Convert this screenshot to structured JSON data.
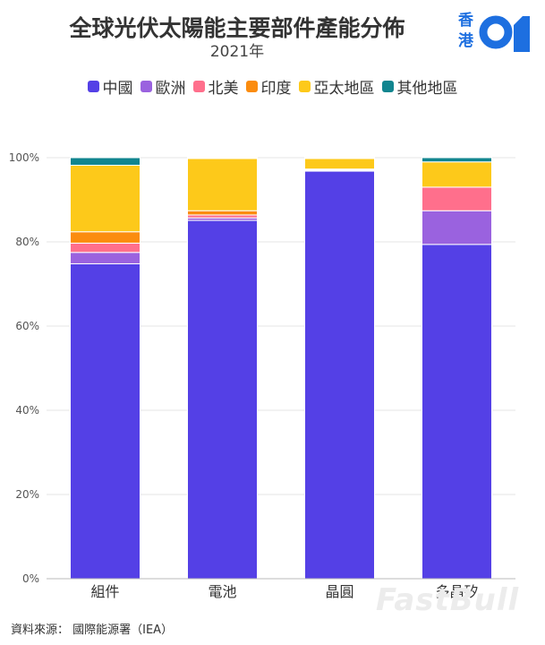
{
  "header": {
    "title": "全球光伏太陽能主要部件產能分佈",
    "subtitle": "2021年"
  },
  "logo": {
    "line1": "香",
    "line2": "港",
    "mark": "01"
  },
  "watermark": "FastBull",
  "source": "資料來源： 國際能源署（IEA）",
  "chart_data": {
    "type": "bar",
    "stacked": true,
    "categories": [
      "組件",
      "電池",
      "晶圓",
      "多晶矽"
    ],
    "series": [
      {
        "name": "中國",
        "color": "#5440e6",
        "values": [
          74.8,
          85.1,
          96.8,
          79.4
        ]
      },
      {
        "name": "歐洲",
        "color": "#9a62df",
        "values": [
          2.7,
          0.6,
          0.2,
          8.0
        ]
      },
      {
        "name": "北美",
        "color": "#ff6f8c",
        "values": [
          2.2,
          0.7,
          0.2,
          5.6
        ]
      },
      {
        "name": "印度",
        "color": "#fb8c0e",
        "values": [
          2.7,
          1.0,
          0.1,
          0.0
        ]
      },
      {
        "name": "亞太地區",
        "color": "#fdc91a",
        "values": [
          15.8,
          12.4,
          2.5,
          6.0
        ]
      },
      {
        "name": "其他地區",
        "color": "#11858f",
        "values": [
          1.8,
          0.2,
          0.2,
          1.0
        ]
      }
    ],
    "y_ticks": [
      "0%",
      "20%",
      "40%",
      "60%",
      "80%",
      "100%"
    ],
    "ylim": [
      0,
      100
    ],
    "grid": true,
    "legend_position": "top-center"
  }
}
